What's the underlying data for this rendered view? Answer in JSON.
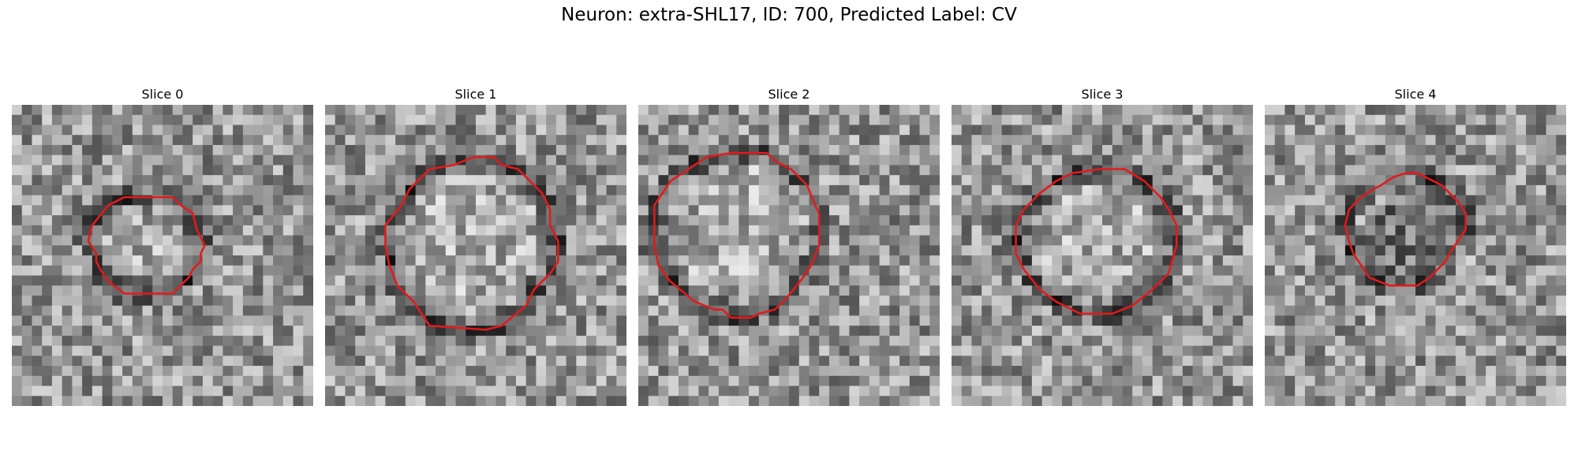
{
  "figure": {
    "title": "Neuron: extra-SHL17, ID: 700, Predicted Label: CV",
    "contour_color": "#e31a1c",
    "colormap": "gray",
    "panels": [
      {
        "title": "Slice 0",
        "contour": [
          [
            128,
            92
          ],
          [
            160,
            92
          ],
          [
            168,
            100
          ],
          [
            180,
            108
          ],
          [
            184,
            124
          ],
          [
            192,
            140
          ],
          [
            188,
            148
          ],
          [
            188,
            156
          ],
          [
            180,
            164
          ],
          [
            176,
            172
          ],
          [
            168,
            180
          ],
          [
            160,
            188
          ],
          [
            112,
            188
          ],
          [
            96,
            176
          ],
          [
            88,
            164
          ],
          [
            84,
            156
          ],
          [
            84,
            148
          ],
          [
            76,
            136
          ],
          [
            80,
            120
          ],
          [
            96,
            100
          ],
          [
            112,
            92
          ]
        ]
      },
      {
        "title": "Slice 1",
        "contour": [
          [
            148,
            52
          ],
          [
            168,
            52
          ],
          [
            176,
            60
          ],
          [
            192,
            64
          ],
          [
            216,
            88
          ],
          [
            224,
            104
          ],
          [
            224,
            120
          ],
          [
            232,
            136
          ],
          [
            232,
            156
          ],
          [
            224,
            168
          ],
          [
            208,
            184
          ],
          [
            200,
            200
          ],
          [
            176,
            220
          ],
          [
            160,
            224
          ],
          [
            104,
            220
          ],
          [
            88,
            196
          ],
          [
            72,
            180
          ],
          [
            64,
            160
          ],
          [
            60,
            140
          ],
          [
            60,
            120
          ],
          [
            76,
            100
          ],
          [
            84,
            84
          ],
          [
            104,
            64
          ],
          [
            128,
            60
          ]
        ]
      },
      {
        "title": "Slice 2",
        "contour": [
          [
            92,
            48
          ],
          [
            128,
            48
          ],
          [
            136,
            56
          ],
          [
            152,
            64
          ],
          [
            168,
            80
          ],
          [
            176,
            100
          ],
          [
            180,
            108
          ],
          [
            180,
            140
          ],
          [
            172,
            160
          ],
          [
            164,
            172
          ],
          [
            148,
            192
          ],
          [
            136,
            204
          ],
          [
            120,
            208
          ],
          [
            112,
            212
          ],
          [
            92,
            212
          ],
          [
            84,
            204
          ],
          [
            76,
            204
          ],
          [
            56,
            196
          ],
          [
            32,
            176
          ],
          [
            20,
            160
          ],
          [
            16,
            140
          ],
          [
            16,
            100
          ],
          [
            32,
            76
          ],
          [
            56,
            60
          ],
          [
            68,
            52
          ]
        ]
      },
      {
        "title": "Slice 3",
        "contour": [
          [
            148,
            64
          ],
          [
            172,
            64
          ],
          [
            192,
            76
          ],
          [
            208,
            92
          ],
          [
            216,
            104
          ],
          [
            224,
            120
          ],
          [
            224,
            140
          ],
          [
            216,
            168
          ],
          [
            200,
            184
          ],
          [
            180,
            200
          ],
          [
            160,
            208
          ],
          [
            128,
            208
          ],
          [
            104,
            196
          ],
          [
            88,
            184
          ],
          [
            72,
            164
          ],
          [
            64,
            148
          ],
          [
            64,
            120
          ],
          [
            72,
            104
          ],
          [
            88,
            88
          ],
          [
            104,
            76
          ],
          [
            120,
            68
          ]
        ]
      },
      {
        "title": "Slice 4",
        "contour": [
          [
            140,
            68
          ],
          [
            152,
            68
          ],
          [
            160,
            72
          ],
          [
            176,
            80
          ],
          [
            192,
            96
          ],
          [
            200,
            108
          ],
          [
            200,
            124
          ],
          [
            192,
            136
          ],
          [
            184,
            148
          ],
          [
            180,
            156
          ],
          [
            164,
            172
          ],
          [
            152,
            180
          ],
          [
            124,
            180
          ],
          [
            104,
            172
          ],
          [
            96,
            160
          ],
          [
            88,
            148
          ],
          [
            84,
            136
          ],
          [
            80,
            120
          ],
          [
            84,
            104
          ],
          [
            96,
            92
          ],
          [
            108,
            84
          ],
          [
            116,
            80
          ],
          [
            128,
            72
          ]
        ]
      }
    ]
  }
}
